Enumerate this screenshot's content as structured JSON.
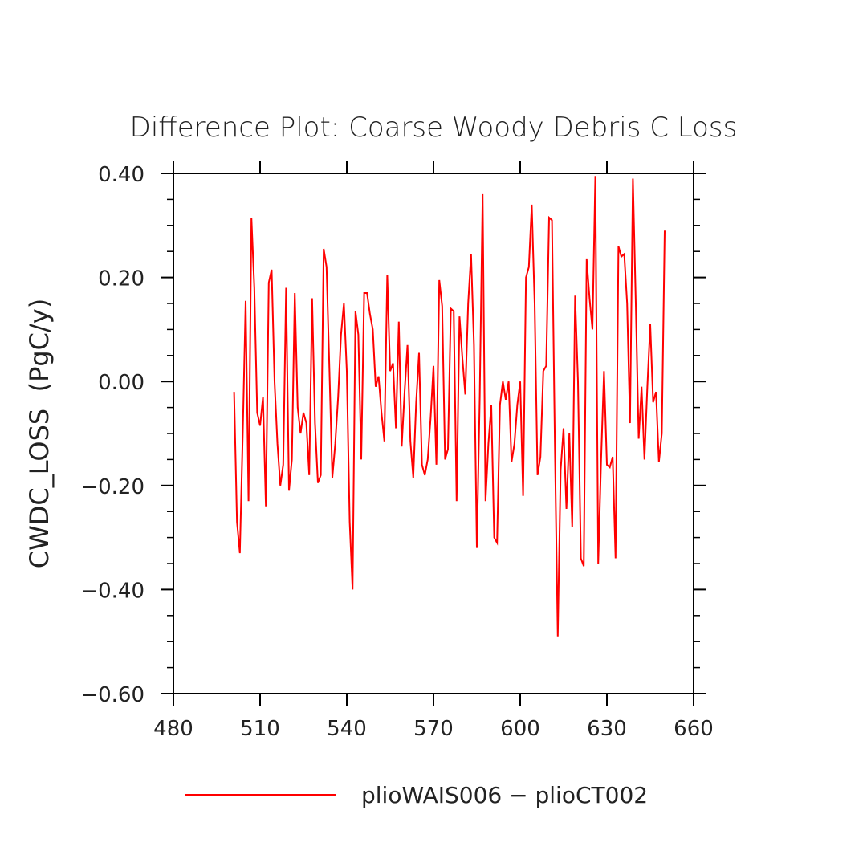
{
  "chart_data": {
    "type": "line",
    "title": "Difference Plot: Coarse Woody Debris C Loss",
    "xlabel": "",
    "ylabel": "CWDC_LOSS  (PgC/y)",
    "xlim": [
      480,
      660
    ],
    "ylim": [
      -0.6,
      0.4
    ],
    "x_ticks": [
      480,
      510,
      540,
      570,
      600,
      630,
      660
    ],
    "x_tick_labels": [
      "480",
      "510",
      "540",
      "570",
      "600",
      "630",
      "660"
    ],
    "y_ticks": [
      -0.6,
      -0.4,
      -0.2,
      0.0,
      0.2,
      0.4
    ],
    "y_tick_labels": [
      "−0.60",
      "−0.40",
      "−0.20",
      "0.00",
      "0.20",
      "0.40"
    ],
    "grid": false,
    "legend_position": "bottom",
    "series": [
      {
        "name": "plioWAIS006 − plioCT002",
        "color": "#ff0000",
        "x": [
          501,
          502,
          503,
          504,
          505,
          506,
          507,
          508,
          509,
          510,
          511,
          512,
          513,
          514,
          515,
          516,
          517,
          518,
          519,
          520,
          521,
          522,
          523,
          524,
          525,
          526,
          527,
          528,
          529,
          530,
          531,
          532,
          533,
          534,
          535,
          536,
          537,
          538,
          539,
          540,
          541,
          542,
          543,
          544,
          545,
          546,
          547,
          548,
          549,
          550,
          551,
          552,
          553,
          554,
          555,
          556,
          557,
          558,
          559,
          560,
          561,
          562,
          563,
          564,
          565,
          566,
          567,
          568,
          569,
          570,
          571,
          572,
          573,
          574,
          575,
          576,
          577,
          578,
          579,
          580,
          581,
          582,
          583,
          584,
          585,
          586,
          587,
          588,
          589,
          590,
          591,
          592,
          593,
          594,
          595,
          596,
          597,
          598,
          599,
          600,
          601,
          602,
          603,
          604,
          605,
          606,
          607,
          608,
          609,
          610,
          611,
          612,
          613,
          614,
          615,
          616,
          617,
          618,
          619,
          620,
          621,
          622,
          623,
          624,
          625,
          626,
          627,
          628,
          629,
          630,
          631,
          632,
          633,
          634,
          635,
          636,
          637,
          638,
          639,
          640,
          641,
          642,
          643,
          644,
          645,
          646,
          647,
          648,
          649,
          650
        ],
        "y": [
          -0.02,
          -0.27,
          -0.33,
          -0.1,
          0.155,
          -0.23,
          0.315,
          0.18,
          -0.06,
          -0.085,
          -0.03,
          -0.24,
          0.19,
          0.215,
          0.0,
          -0.12,
          -0.2,
          -0.16,
          0.18,
          -0.21,
          -0.15,
          0.17,
          -0.05,
          -0.1,
          -0.06,
          -0.08,
          -0.18,
          0.16,
          -0.08,
          -0.195,
          -0.18,
          0.255,
          0.22,
          0.02,
          -0.185,
          -0.12,
          -0.03,
          0.09,
          0.15,
          0.02,
          -0.27,
          -0.4,
          0.135,
          0.09,
          -0.15,
          0.17,
          0.17,
          0.13,
          0.1,
          -0.01,
          0.01,
          -0.06,
          -0.115,
          0.205,
          0.02,
          0.035,
          -0.09,
          0.115,
          -0.125,
          -0.02,
          0.07,
          -0.115,
          -0.185,
          -0.04,
          0.055,
          -0.16,
          -0.18,
          -0.15,
          -0.07,
          0.03,
          -0.16,
          0.195,
          0.145,
          -0.15,
          -0.13,
          0.14,
          0.135,
          -0.23,
          0.125,
          0.045,
          -0.025,
          0.15,
          0.245,
          0.07,
          -0.32,
          -0.03,
          0.36,
          -0.23,
          -0.12,
          -0.045,
          -0.3,
          -0.31,
          -0.045,
          0.0,
          -0.035,
          0.0,
          -0.155,
          -0.12,
          -0.045,
          0.0,
          -0.22,
          0.2,
          0.22,
          0.34,
          0.15,
          -0.18,
          -0.145,
          0.02,
          0.03,
          0.315,
          0.31,
          -0.12,
          -0.49,
          -0.17,
          -0.09,
          -0.245,
          -0.1,
          -0.28,
          0.165,
          0.0,
          -0.34,
          -0.355,
          0.235,
          0.16,
          0.1,
          0.395,
          -0.35,
          -0.15,
          0.02,
          -0.16,
          -0.165,
          -0.145,
          -0.34,
          0.26,
          0.24,
          0.245,
          0.15,
          -0.08,
          0.39,
          0.15,
          -0.11,
          -0.01,
          -0.15,
          -0.01,
          0.11,
          -0.04,
          -0.02,
          -0.155,
          -0.1,
          0.29
        ]
      }
    ]
  }
}
